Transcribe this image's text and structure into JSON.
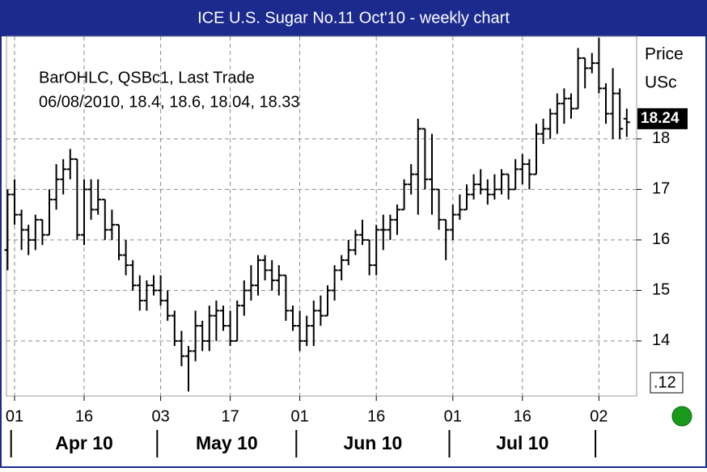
{
  "chart_data": {
    "type": "ohlc",
    "title": "ICE U.S. Sugar No.11 Oct'10  - weekly chart",
    "legend_lines": [
      "BarOHLC, QSBc1, Last Trade",
      "06/08/2010, 18.4, 18.6, 18.04, 18.33"
    ],
    "y_axis_label": [
      "Price",
      "USc"
    ],
    "last_price": 18.24,
    "bottom_label": ".12",
    "color": "#000000",
    "grid": true,
    "x": [
      "2010-03-31",
      "2010-04-01",
      "2010-04-05",
      "2010-04-06",
      "2010-04-07",
      "2010-04-08",
      "2010-04-09",
      "2010-04-12",
      "2010-04-13",
      "2010-04-14",
      "2010-04-15",
      "2010-04-16",
      "2010-04-19",
      "2010-04-20",
      "2010-04-21",
      "2010-04-22",
      "2010-04-23",
      "2010-04-26",
      "2010-04-27",
      "2010-04-28",
      "2010-04-29",
      "2010-04-30",
      "2010-05-03",
      "2010-05-04",
      "2010-05-05",
      "2010-05-06",
      "2010-05-07",
      "2010-05-10",
      "2010-05-11",
      "2010-05-12",
      "2010-05-13",
      "2010-05-14",
      "2010-05-17",
      "2010-05-18",
      "2010-05-19",
      "2010-05-20",
      "2010-05-21",
      "2010-05-24",
      "2010-05-25",
      "2010-05-26",
      "2010-05-27",
      "2010-05-28",
      "2010-06-01",
      "2010-06-02",
      "2010-06-03",
      "2010-06-04",
      "2010-06-07",
      "2010-06-08",
      "2010-06-09",
      "2010-06-10",
      "2010-06-11",
      "2010-06-14",
      "2010-06-15",
      "2010-06-16",
      "2010-06-17",
      "2010-06-18",
      "2010-06-21",
      "2010-06-22",
      "2010-06-23",
      "2010-06-24",
      "2010-06-25",
      "2010-06-28",
      "2010-06-29",
      "2010-06-30",
      "2010-07-01",
      "2010-07-02",
      "2010-07-06",
      "2010-07-07",
      "2010-07-08",
      "2010-07-09",
      "2010-07-12",
      "2010-07-13",
      "2010-07-14",
      "2010-07-15",
      "2010-07-16",
      "2010-07-19",
      "2010-07-20",
      "2010-07-21",
      "2010-07-22",
      "2010-07-23",
      "2010-07-26",
      "2010-07-27",
      "2010-07-28",
      "2010-07-29",
      "2010-07-30",
      "2010-08-02",
      "2010-08-03",
      "2010-08-04",
      "2010-08-05",
      "2010-08-06"
    ],
    "open": [
      15.8,
      16.9,
      16.5,
      16.2,
      16.0,
      16.4,
      16.1,
      16.8,
      17.2,
      17.4,
      17.6,
      16.1,
      17.0,
      16.6,
      16.8,
      16.2,
      16.3,
      15.7,
      15.5,
      15.1,
      14.8,
      15.1,
      15.0,
      14.8,
      14.5,
      14.0,
      13.7,
      13.8,
      14.3,
      14.0,
      14.5,
      14.6,
      14.3,
      14.0,
      14.7,
      15.0,
      15.1,
      15.6,
      15.4,
      15.2,
      15.3,
      14.6,
      14.3,
      14.0,
      14.3,
      14.6,
      14.5,
      15.0,
      15.4,
      15.6,
      15.8,
      16.1,
      16.0,
      15.5,
      16.2,
      16.2,
      16.4,
      16.6,
      17.1,
      17.3,
      18.2,
      17.2,
      17.0,
      16.4,
      16.2,
      16.5,
      16.6,
      16.9,
      17.1,
      17.0,
      16.9,
      17.0,
      17.3,
      17.0,
      17.4,
      17.5,
      17.3,
      18.1,
      18.2,
      18.5,
      18.7,
      18.8,
      18.6,
      19.6,
      19.4,
      19.5,
      19.0,
      18.5,
      18.9,
      18.4
    ],
    "high": [
      17.0,
      17.2,
      16.6,
      16.3,
      16.5,
      16.4,
      17.0,
      17.5,
      17.6,
      17.8,
      17.6,
      17.2,
      17.2,
      17.2,
      16.8,
      16.6,
      16.3,
      16.0,
      15.6,
      15.3,
      15.2,
      15.3,
      15.3,
      15.0,
      14.6,
      14.2,
      13.9,
      14.6,
      14.4,
      14.7,
      14.8,
      14.7,
      14.6,
      14.8,
      15.2,
      15.5,
      15.7,
      15.7,
      15.6,
      15.5,
      15.3,
      14.7,
      14.6,
      14.5,
      14.8,
      14.9,
      15.1,
      15.5,
      15.7,
      16.0,
      16.2,
      16.4,
      16.0,
      16.3,
      16.5,
      16.5,
      16.7,
      17.2,
      17.5,
      18.4,
      18.2,
      18.1,
      17.0,
      16.4,
      16.7,
      16.9,
      17.1,
      17.3,
      17.4,
      17.2,
      17.3,
      17.4,
      17.3,
      17.6,
      17.7,
      17.6,
      18.3,
      18.4,
      18.6,
      18.9,
      19.0,
      18.9,
      19.8,
      19.6,
      19.7,
      20.0,
      19.1,
      19.4,
      19.0,
      18.6
    ],
    "low": [
      15.4,
      16.3,
      15.8,
      15.7,
      15.8,
      15.9,
      16.1,
      16.6,
      16.9,
      17.2,
      16.0,
      15.9,
      16.4,
      16.5,
      16.0,
      16.0,
      15.6,
      15.3,
      15.0,
      14.6,
      14.6,
      14.9,
      14.7,
      14.4,
      13.9,
      13.5,
      13.0,
      13.6,
      13.8,
      13.8,
      14.0,
      14.2,
      13.9,
      14.0,
      14.5,
      14.8,
      14.9,
      15.2,
      15.0,
      14.9,
      14.4,
      14.2,
      13.8,
      13.9,
      13.9,
      14.3,
      14.5,
      14.8,
      15.2,
      15.5,
      15.7,
      15.9,
      15.3,
      15.3,
      15.8,
      16.0,
      16.1,
      16.6,
      16.9,
      16.5,
      17.0,
      16.5,
      16.2,
      15.6,
      16.0,
      16.4,
      16.6,
      16.8,
      16.9,
      16.7,
      16.8,
      16.9,
      16.8,
      17.0,
      17.1,
      17.0,
      17.3,
      17.9,
      18.0,
      18.1,
      18.3,
      18.4,
      18.6,
      19.0,
      19.3,
      18.9,
      18.3,
      18.0,
      18.0,
      18.04
    ],
    "close": [
      16.9,
      16.5,
      16.2,
      16.0,
      16.4,
      16.1,
      16.8,
      17.2,
      17.4,
      17.6,
      16.1,
      17.0,
      16.6,
      16.8,
      16.2,
      16.3,
      15.7,
      15.5,
      15.1,
      14.8,
      15.1,
      15.0,
      14.8,
      14.5,
      14.0,
      13.7,
      13.8,
      14.3,
      14.0,
      14.5,
      14.6,
      14.3,
      14.0,
      14.7,
      15.0,
      15.1,
      15.6,
      15.4,
      15.2,
      15.3,
      14.6,
      14.3,
      14.0,
      14.3,
      14.6,
      14.5,
      15.0,
      15.4,
      15.6,
      15.8,
      16.1,
      16.0,
      15.5,
      16.2,
      16.2,
      16.4,
      16.6,
      17.1,
      17.3,
      18.2,
      17.2,
      17.0,
      16.4,
      16.2,
      16.5,
      16.6,
      16.9,
      17.1,
      17.0,
      16.9,
      17.0,
      17.3,
      17.0,
      17.4,
      17.5,
      17.3,
      18.1,
      18.2,
      18.5,
      18.7,
      18.8,
      18.6,
      19.6,
      19.4,
      19.5,
      19.0,
      18.5,
      18.9,
      18.2,
      18.33
    ],
    "ylim": [
      12.91,
      20.03
    ],
    "yticks": [
      14,
      15,
      16,
      17,
      18
    ],
    "xticks": [
      {
        "value": "2010-04-01",
        "label": "01"
      },
      {
        "value": "2010-04-16",
        "label": "16"
      },
      {
        "value": "2010-05-03",
        "label": "03"
      },
      {
        "value": "2010-05-17",
        "label": "17"
      },
      {
        "value": "2010-06-01",
        "label": "01"
      },
      {
        "value": "2010-06-16",
        "label": "16"
      },
      {
        "value": "2010-07-01",
        "label": "01"
      },
      {
        "value": "2010-07-16",
        "label": "16"
      },
      {
        "value": "2010-08-02",
        "label": "02"
      }
    ],
    "months": [
      {
        "value": "2010-04-01",
        "label": "Apr 10"
      },
      {
        "value": "2010-05-03",
        "label": "May 10"
      },
      {
        "value": "2010-06-01",
        "label": "Jun 10"
      },
      {
        "value": "2010-07-01",
        "label": "Jul 10"
      }
    ]
  }
}
